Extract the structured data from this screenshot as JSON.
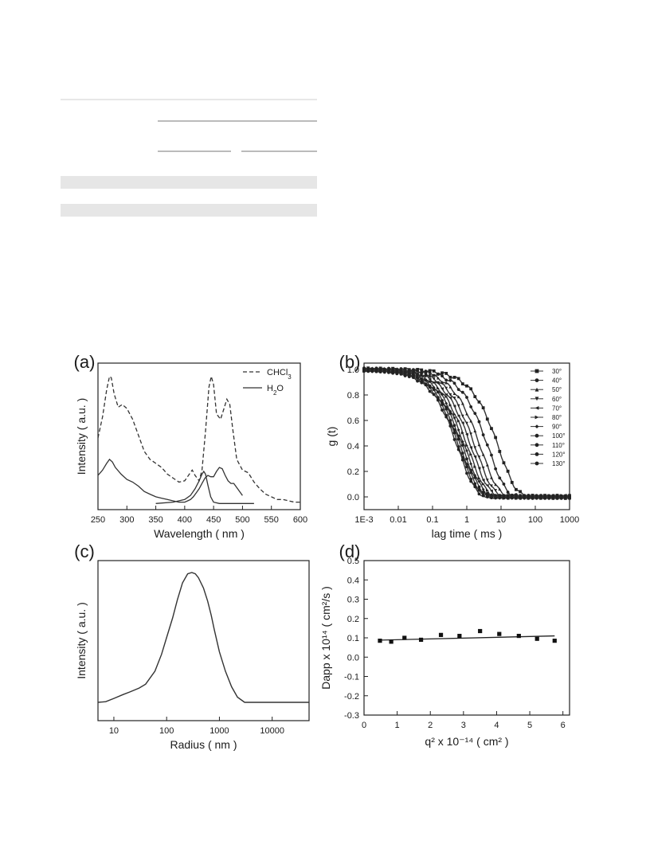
{
  "chart_data": [
    {
      "panel": "(a)",
      "type": "line",
      "xlabel": "Wavelength ( nm )",
      "ylabel": "Intensity ( a.u. )",
      "xlim": [
        250,
        600
      ],
      "xticks": [
        250,
        300,
        350,
        400,
        450,
        500,
        550,
        600
      ],
      "ylim": [
        0,
        1
      ],
      "y_ticks_shown": false,
      "legend": {
        "position": "top-right",
        "entries": [
          "CHCl3",
          "H2O"
        ]
      },
      "series": [
        {
          "name": "CHCl3",
          "style": "dashed",
          "x": [
            250,
            258,
            265,
            270,
            273,
            278,
            285,
            292,
            300,
            310,
            320,
            330,
            340,
            350,
            360,
            370,
            380,
            390,
            400,
            408,
            413,
            418,
            425,
            430,
            436,
            442,
            446,
            450,
            455,
            462,
            468,
            473,
            478,
            483,
            490,
            500,
            510,
            520,
            530,
            540,
            550,
            560,
            570,
            580,
            590,
            600
          ],
          "y": [
            0.5,
            0.66,
            0.86,
            0.96,
            0.95,
            0.83,
            0.73,
            0.75,
            0.72,
            0.64,
            0.52,
            0.4,
            0.34,
            0.31,
            0.28,
            0.23,
            0.2,
            0.17,
            0.18,
            0.23,
            0.26,
            0.22,
            0.18,
            0.26,
            0.55,
            0.88,
            0.96,
            0.9,
            0.68,
            0.64,
            0.72,
            0.79,
            0.75,
            0.57,
            0.34,
            0.26,
            0.24,
            0.17,
            0.12,
            0.08,
            0.06,
            0.04,
            0.04,
            0.03,
            0.02,
            0.02
          ]
        },
        {
          "name": "H2O",
          "style": "solid",
          "x": [
            250,
            258,
            265,
            270,
            275,
            280,
            290,
            300,
            310,
            320,
            330,
            340,
            350,
            360,
            370,
            380,
            390,
            400,
            405,
            410,
            415,
            420,
            425,
            430,
            435,
            440,
            445,
            450,
            455,
            460,
            465,
            470,
            475,
            480,
            485,
            490,
            495,
            500
          ],
          "y": [
            0.22,
            0.26,
            0.31,
            0.34,
            0.32,
            0.28,
            0.23,
            0.19,
            0.17,
            0.14,
            0.1,
            0.08,
            0.06,
            0.05,
            0.04,
            0.03,
            0.02,
            0.02,
            0.03,
            0.04,
            0.06,
            0.09,
            0.12,
            0.16,
            0.2,
            0.22,
            0.21,
            0.21,
            0.25,
            0.28,
            0.27,
            0.22,
            0.18,
            0.16,
            0.16,
            0.13,
            0.1,
            0.07
          ]
        },
        {
          "name": "",
          "style": "solid",
          "x": [
            350,
            380,
            400,
            410,
            418,
            425,
            430,
            433,
            436,
            440,
            445,
            450,
            460,
            480,
            500,
            520
          ],
          "y": [
            0.01,
            0.02,
            0.04,
            0.07,
            0.12,
            0.18,
            0.23,
            0.25,
            0.23,
            0.15,
            0.06,
            0.02,
            0.01,
            0.01,
            0.01,
            0.01
          ]
        }
      ]
    },
    {
      "panel": "(b)",
      "type": "scatter",
      "xlabel": "lag time ( ms )",
      "ylabel": "g (t)",
      "xscale": "log",
      "xlim": [
        0.001,
        1000
      ],
      "xticks": [
        "1E-3",
        "0.01",
        "0.1",
        "1",
        "10",
        "100",
        "1000"
      ],
      "ylim": [
        -0.1,
        1.05
      ],
      "yticks": [
        "0.0",
        "0.2",
        "0.4",
        "0.6",
        "0.8",
        "1.0"
      ],
      "legend": {
        "position": "top-right",
        "entries": [
          "30°",
          "40°",
          "50°",
          "60°",
          "70°",
          "80°",
          "90°",
          "100°",
          "110°",
          "120°",
          "130°"
        ],
        "markers": [
          "square",
          "circle",
          "triangle-up",
          "triangle-down",
          "triangle-left",
          "triangle-right",
          "diamond",
          "hexagon",
          "star",
          "pentagon",
          "circle"
        ]
      },
      "series": [
        {
          "name": "30°",
          "decay_time_ms": 9.0
        },
        {
          "name": "40°",
          "decay_time_ms": 4.5
        },
        {
          "name": "50°",
          "decay_time_ms": 2.7
        },
        {
          "name": "60°",
          "decay_time_ms": 1.9
        },
        {
          "name": "70°",
          "decay_time_ms": 1.45
        },
        {
          "name": "80°",
          "decay_time_ms": 1.15
        },
        {
          "name": "90°",
          "decay_time_ms": 0.95
        },
        {
          "name": "100°",
          "decay_time_ms": 0.82
        },
        {
          "name": "110°",
          "decay_time_ms": 0.72
        },
        {
          "name": "120°",
          "decay_time_ms": 0.64
        },
        {
          "name": "130°",
          "decay_time_ms": 0.58
        }
      ]
    },
    {
      "panel": "(c)",
      "type": "line",
      "xlabel": "Radius ( nm )",
      "ylabel": "Intensity ( a.u. )",
      "xscale": "log",
      "xlim": [
        5,
        50000
      ],
      "xticks": [
        "10",
        "100",
        "1000",
        "10000"
      ],
      "ylim": [
        0,
        1
      ],
      "y_ticks_shown": false,
      "series": [
        {
          "name": "",
          "x": [
            5,
            7,
            10,
            15,
            20,
            30,
            40,
            60,
            80,
            100,
            130,
            160,
            200,
            250,
            300,
            350,
            400,
            500,
            600,
            700,
            800,
            1000,
            1300,
            1700,
            2200,
            3000,
            5000,
            10000,
            50000
          ],
          "y": [
            0.0,
            0.005,
            0.03,
            0.06,
            0.08,
            0.11,
            0.14,
            0.24,
            0.37,
            0.5,
            0.65,
            0.79,
            0.92,
            0.99,
            1.0,
            0.99,
            0.96,
            0.88,
            0.78,
            0.67,
            0.56,
            0.39,
            0.24,
            0.12,
            0.04,
            0.0,
            0.0,
            0.0,
            0.0
          ]
        }
      ]
    },
    {
      "panel": "(d)",
      "type": "scatter",
      "xlabel": "q² x 10⁻¹⁴ ( cm² )",
      "ylabel": "Dapp x 10¹⁴ ( cm²/s )",
      "xlim": [
        0,
        6.2
      ],
      "xticks": [
        "0",
        "1",
        "2",
        "3",
        "4",
        "5",
        "6"
      ],
      "ylim": [
        -0.3,
        0.5
      ],
      "yticks": [
        "-0.3",
        "-0.2",
        "-0.1",
        "0.0",
        "0.1",
        "0.2",
        "0.3",
        "0.4",
        "0.5"
      ],
      "points": {
        "x": [
          0.48,
          0.82,
          1.22,
          1.72,
          2.32,
          2.88,
          3.5,
          4.08,
          4.67,
          5.22,
          5.75
        ],
        "y": [
          0.085,
          0.08,
          0.1,
          0.09,
          0.115,
          0.11,
          0.135,
          0.12,
          0.11,
          0.095,
          0.085
        ]
      },
      "fit_line": {
        "x": [
          0.48,
          5.75
        ],
        "y": [
          0.088,
          0.11
        ]
      }
    }
  ]
}
